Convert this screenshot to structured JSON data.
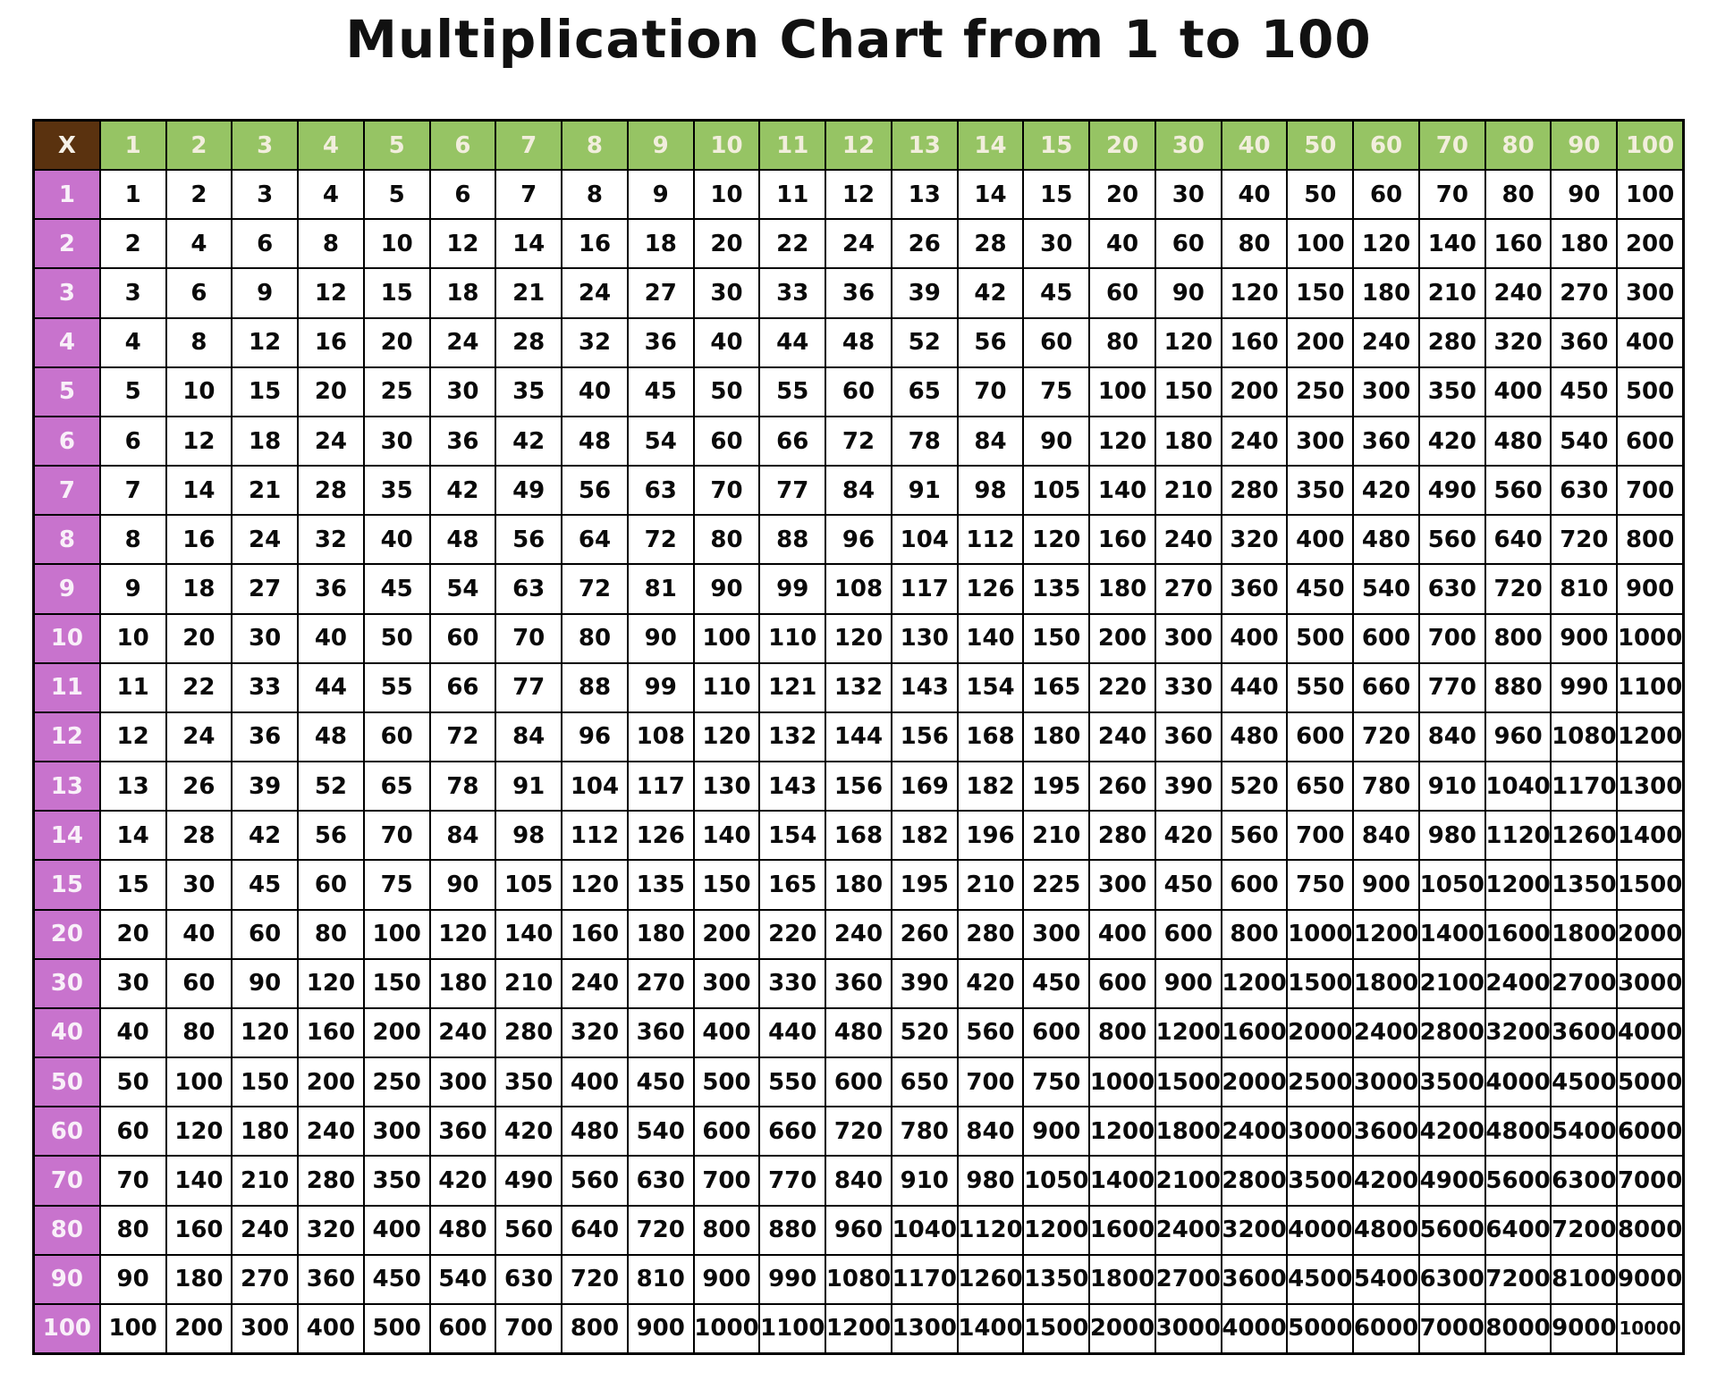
{
  "page_title": "Multiplication Chart from 1 to 100",
  "colors": {
    "page_bg": "#ffffff",
    "title_text": "#111111",
    "grid_line": "#000000",
    "cell_bg": "#ffffff",
    "cell_text": "#0a0a0a",
    "header_bg": "#96c464",
    "header_text": "#f2eedd",
    "row_header_bg": "#c873cd",
    "row_header_text": "#f9f0f9",
    "corner_bg": "#5a320f",
    "corner_text": "#f5f0e6"
  },
  "chart_data": {
    "type": "table",
    "title": "Multiplication Chart from 1 to 100",
    "corner_label": "X",
    "factors": [
      1,
      2,
      3,
      4,
      5,
      6,
      7,
      8,
      9,
      10,
      11,
      12,
      13,
      14,
      15,
      20,
      30,
      40,
      50,
      60,
      70,
      80,
      90,
      100
    ],
    "rows": [
      [
        1,
        2,
        3,
        4,
        5,
        6,
        7,
        8,
        9,
        10,
        11,
        12,
        13,
        14,
        15,
        20,
        30,
        40,
        50,
        60,
        70,
        80,
        90,
        100
      ],
      [
        2,
        4,
        6,
        8,
        10,
        12,
        14,
        16,
        18,
        20,
        22,
        24,
        26,
        28,
        30,
        40,
        60,
        80,
        100,
        120,
        140,
        160,
        180,
        200
      ],
      [
        3,
        6,
        9,
        12,
        15,
        18,
        21,
        24,
        27,
        30,
        33,
        36,
        39,
        42,
        45,
        60,
        90,
        120,
        150,
        180,
        210,
        240,
        270,
        300
      ],
      [
        4,
        8,
        12,
        16,
        20,
        24,
        28,
        32,
        36,
        40,
        44,
        48,
        52,
        56,
        60,
        80,
        120,
        160,
        200,
        240,
        280,
        320,
        360,
        400
      ],
      [
        5,
        10,
        15,
        20,
        25,
        30,
        35,
        40,
        45,
        50,
        55,
        60,
        65,
        70,
        75,
        100,
        150,
        200,
        250,
        300,
        350,
        400,
        450,
        500
      ],
      [
        6,
        12,
        18,
        24,
        30,
        36,
        42,
        48,
        54,
        60,
        66,
        72,
        78,
        84,
        90,
        120,
        180,
        240,
        300,
        360,
        420,
        480,
        540,
        600
      ],
      [
        7,
        14,
        21,
        28,
        35,
        42,
        49,
        56,
        63,
        70,
        77,
        84,
        91,
        98,
        105,
        140,
        210,
        280,
        350,
        420,
        490,
        560,
        630,
        700
      ],
      [
        8,
        16,
        24,
        32,
        40,
        48,
        56,
        64,
        72,
        80,
        88,
        96,
        104,
        112,
        120,
        160,
        240,
        320,
        400,
        480,
        560,
        640,
        720,
        800
      ],
      [
        9,
        18,
        27,
        36,
        45,
        54,
        63,
        72,
        81,
        90,
        99,
        108,
        117,
        126,
        135,
        180,
        270,
        360,
        450,
        540,
        630,
        720,
        810,
        900
      ],
      [
        10,
        20,
        30,
        40,
        50,
        60,
        70,
        80,
        90,
        100,
        110,
        120,
        130,
        140,
        150,
        200,
        300,
        400,
        500,
        600,
        700,
        800,
        900,
        1000
      ],
      [
        11,
        22,
        33,
        44,
        55,
        66,
        77,
        88,
        99,
        110,
        121,
        132,
        143,
        154,
        165,
        220,
        330,
        440,
        550,
        660,
        770,
        880,
        990,
        1100
      ],
      [
        12,
        24,
        36,
        48,
        60,
        72,
        84,
        96,
        108,
        120,
        132,
        144,
        156,
        168,
        180,
        240,
        360,
        480,
        600,
        720,
        840,
        960,
        1080,
        1200
      ],
      [
        13,
        26,
        39,
        52,
        65,
        78,
        91,
        104,
        117,
        130,
        143,
        156,
        169,
        182,
        195,
        260,
        390,
        520,
        650,
        780,
        910,
        1040,
        1170,
        1300
      ],
      [
        14,
        28,
        42,
        56,
        70,
        84,
        98,
        112,
        126,
        140,
        154,
        168,
        182,
        196,
        210,
        280,
        420,
        560,
        700,
        840,
        980,
        1120,
        1260,
        1400
      ],
      [
        15,
        30,
        45,
        60,
        75,
        90,
        105,
        120,
        135,
        150,
        165,
        180,
        195,
        210,
        225,
        300,
        450,
        600,
        750,
        900,
        1050,
        1200,
        1350,
        1500
      ],
      [
        20,
        40,
        60,
        80,
        100,
        120,
        140,
        160,
        180,
        200,
        220,
        240,
        260,
        280,
        300,
        400,
        600,
        800,
        1000,
        1200,
        1400,
        1600,
        1800,
        2000
      ],
      [
        30,
        60,
        90,
        120,
        150,
        180,
        210,
        240,
        270,
        300,
        330,
        360,
        390,
        420,
        450,
        600,
        900,
        1200,
        1500,
        1800,
        2100,
        2400,
        2700,
        3000
      ],
      [
        40,
        80,
        120,
        160,
        200,
        240,
        280,
        320,
        360,
        400,
        440,
        480,
        520,
        560,
        600,
        800,
        1200,
        1600,
        2000,
        2400,
        2800,
        3200,
        3600,
        4000
      ],
      [
        50,
        100,
        150,
        200,
        250,
        300,
        350,
        400,
        450,
        500,
        550,
        600,
        650,
        700,
        750,
        1000,
        1500,
        2000,
        2500,
        3000,
        3500,
        4000,
        4500,
        5000
      ],
      [
        60,
        120,
        180,
        240,
        300,
        360,
        420,
        480,
        540,
        600,
        660,
        720,
        780,
        840,
        900,
        1200,
        1800,
        2400,
        3000,
        3600,
        4200,
        4800,
        5400,
        6000
      ],
      [
        70,
        140,
        210,
        280,
        350,
        420,
        490,
        560,
        630,
        700,
        770,
        840,
        910,
        980,
        1050,
        1400,
        2100,
        2800,
        3500,
        4200,
        4900,
        5600,
        6300,
        7000
      ],
      [
        80,
        160,
        240,
        320,
        400,
        480,
        560,
        640,
        720,
        800,
        880,
        960,
        1040,
        1120,
        1200,
        1600,
        2400,
        3200,
        4000,
        4800,
        5600,
        6400,
        7200,
        8000
      ],
      [
        90,
        180,
        270,
        360,
        450,
        540,
        630,
        720,
        810,
        900,
        990,
        1080,
        1170,
        1260,
        1350,
        1800,
        2700,
        3600,
        4500,
        5400,
        6300,
        7200,
        8100,
        9000
      ],
      [
        100,
        200,
        300,
        400,
        500,
        600,
        700,
        800,
        900,
        1000,
        1100,
        1200,
        1300,
        1400,
        1500,
        2000,
        3000,
        4000,
        5000,
        6000,
        7000,
        8000,
        9000,
        10000
      ]
    ]
  }
}
